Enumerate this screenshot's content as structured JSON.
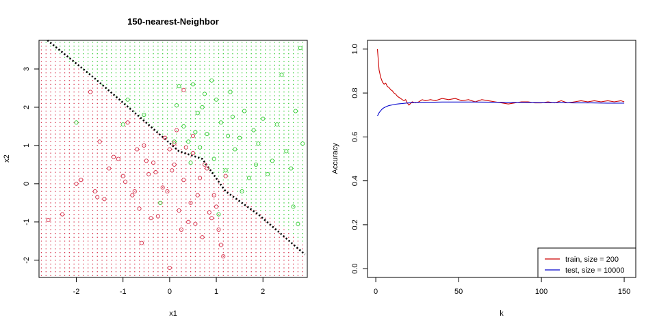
{
  "chart_data": [
    {
      "type": "scatter",
      "title": "150-nearest-Neighbor",
      "xlabel": "x1",
      "ylabel": "x2",
      "xlim": [
        -2.8,
        2.95
      ],
      "ylim": [
        -2.45,
        3.75
      ],
      "xticks": [
        "-2",
        "-1",
        "0",
        "1",
        "2"
      ],
      "xtick_values": [
        -2,
        -1,
        0,
        1,
        2
      ],
      "yticks": [
        "-2",
        "-1",
        "0",
        "1",
        "2",
        "3"
      ],
      "ytick_values": [
        -2,
        -1,
        0,
        1,
        2,
        3
      ],
      "grid": {
        "description": "predicted class background dots",
        "rule": "green where x2 > -0.95*x1 + 1.15, otherwise red",
        "step": 0.1
      },
      "boundary": {
        "style": "dotted",
        "points": [
          [
            -2.62,
            3.75
          ],
          [
            -1.6,
            2.75
          ],
          [
            -0.6,
            1.7
          ],
          [
            0.2,
            0.85
          ],
          [
            0.7,
            0.65
          ],
          [
            1.2,
            -0.2
          ],
          [
            1.9,
            -0.8
          ],
          [
            2.9,
            -1.85
          ]
        ]
      },
      "class_colors": {
        "red": "#d6304a",
        "green": "#33cc33"
      },
      "series": [
        {
          "class": "red",
          "x": [
            -2.6,
            -2.3,
            -1.7,
            -1.5,
            -1.3,
            -1.2,
            -1.0,
            -0.9,
            -0.8,
            -0.7,
            -0.6,
            -0.5,
            -0.4,
            -0.3,
            -0.2,
            -0.1,
            0.0,
            0.1,
            0.2,
            0.3,
            0.4,
            0.5,
            0.6,
            0.7,
            0.8,
            0.9,
            1.0,
            1.1,
            1.2,
            -2.0,
            -1.9,
            -1.6,
            -1.4,
            -1.1,
            -0.95,
            -0.75,
            -0.55,
            -0.35,
            -0.15,
            0.05,
            0.25,
            0.45,
            0.65,
            0.85,
            1.05,
            0.15,
            0.35,
            0.55,
            -0.25,
            -0.45,
            0.75,
            0.95,
            -0.65,
            0.0,
            0.3,
            1.15,
            0.1,
            -0.05,
            0.5,
            -1.55
          ],
          "y": [
            -0.95,
            -0.8,
            2.4,
            1.1,
            0.4,
            0.7,
            0.2,
            1.6,
            -0.3,
            0.9,
            -1.55,
            0.6,
            -0.9,
            0.3,
            -0.5,
            1.2,
            -2.2,
            0.5,
            -0.7,
            0.1,
            -1.0,
            0.8,
            -0.3,
            -1.4,
            0.4,
            -0.9,
            -0.6,
            -1.6,
            0.2,
            0.0,
            0.1,
            -0.2,
            -0.4,
            0.65,
            0.05,
            -0.2,
            1.0,
            0.55,
            -0.1,
            0.35,
            -1.2,
            -0.5,
            0.15,
            -0.75,
            -1.2,
            1.4,
            0.95,
            -1.05,
            -0.85,
            0.25,
            0.5,
            -0.3,
            -0.65,
            0.9,
            2.45,
            -1.9,
            1.05,
            -0.2,
            1.25,
            -0.35
          ]
        },
        {
          "class": "green",
          "x": [
            2.8,
            2.4,
            0.9,
            0.5,
            0.2,
            1.3,
            1.0,
            0.7,
            1.6,
            2.0,
            2.3,
            1.8,
            1.5,
            0.4,
            0.6,
            1.1,
            2.6,
            2.7,
            -0.9,
            -1.0,
            0.3,
            0.8,
            1.4,
            1.9,
            2.2,
            1.2,
            0.95,
            2.85,
            0.1,
            0.55,
            1.7,
            2.1,
            -0.55,
            0.15,
            0.75,
            1.35,
            2.5,
            1.85,
            0.65,
            1.25,
            -0.2,
            0.45,
            1.05,
            2.75,
            1.55,
            -2.0,
            2.65
          ],
          "y": [
            3.55,
            2.85,
            2.7,
            2.6,
            2.55,
            2.4,
            2.2,
            2.0,
            1.9,
            1.7,
            1.55,
            1.4,
            1.2,
            1.1,
            1.85,
            1.6,
            0.4,
            1.9,
            2.2,
            1.55,
            1.5,
            1.3,
            0.9,
            1.05,
            0.6,
            0.35,
            0.65,
            1.05,
            1.1,
            1.35,
            0.15,
            0.25,
            1.8,
            2.05,
            2.35,
            1.75,
            0.85,
            0.5,
            0.95,
            1.25,
            -0.5,
            0.55,
            -0.8,
            -1.05,
            -0.2,
            1.6,
            -0.6
          ]
        }
      ]
    },
    {
      "type": "line",
      "title": "",
      "xlabel": "k",
      "ylabel": "Accuracy",
      "xlim": [
        -5,
        157
      ],
      "ylim": [
        -0.04,
        1.04
      ],
      "xticks": [
        "0",
        "50",
        "100",
        "150"
      ],
      "xtick_values": [
        0,
        50,
        100,
        150
      ],
      "yticks": [
        "0.0",
        "0.2",
        "0.4",
        "0.6",
        "0.8",
        "1.0"
      ],
      "ytick_values": [
        0,
        0.2,
        0.4,
        0.6,
        0.8,
        1.0
      ],
      "legend_position": "bottom-right",
      "series": [
        {
          "name": "train, size = 200",
          "color": "#cc0000",
          "x": [
            1,
            2,
            3,
            4,
            5,
            6,
            7,
            8,
            9,
            10,
            11,
            12,
            13,
            14,
            15,
            16,
            17,
            18,
            19,
            20,
            22,
            24,
            26,
            28,
            30,
            33,
            36,
            40,
            44,
            48,
            52,
            56,
            60,
            64,
            68,
            72,
            76,
            80,
            84,
            88,
            92,
            96,
            100,
            104,
            108,
            112,
            116,
            120,
            124,
            128,
            132,
            136,
            140,
            144,
            148,
            150
          ],
          "y": [
            1.0,
            0.905,
            0.87,
            0.85,
            0.84,
            0.845,
            0.83,
            0.825,
            0.815,
            0.81,
            0.8,
            0.795,
            0.785,
            0.78,
            0.775,
            0.77,
            0.765,
            0.77,
            0.755,
            0.745,
            0.76,
            0.755,
            0.76,
            0.77,
            0.765,
            0.77,
            0.765,
            0.775,
            0.77,
            0.775,
            0.765,
            0.77,
            0.76,
            0.77,
            0.765,
            0.76,
            0.755,
            0.75,
            0.755,
            0.76,
            0.76,
            0.755,
            0.755,
            0.76,
            0.755,
            0.765,
            0.755,
            0.76,
            0.765,
            0.76,
            0.765,
            0.76,
            0.765,
            0.76,
            0.765,
            0.76
          ]
        },
        {
          "name": "test, size = 10000",
          "color": "#0000cc",
          "x": [
            1,
            2,
            3,
            4,
            5,
            6,
            7,
            8,
            10,
            12,
            14,
            16,
            18,
            20,
            25,
            30,
            35,
            40,
            50,
            60,
            70,
            80,
            90,
            100,
            110,
            120,
            130,
            140,
            150
          ],
          "y": [
            0.695,
            0.71,
            0.72,
            0.728,
            0.733,
            0.737,
            0.74,
            0.743,
            0.746,
            0.749,
            0.751,
            0.752,
            0.754,
            0.755,
            0.757,
            0.758,
            0.758,
            0.759,
            0.759,
            0.759,
            0.758,
            0.757,
            0.757,
            0.756,
            0.756,
            0.755,
            0.755,
            0.754,
            0.754
          ]
        }
      ]
    }
  ]
}
